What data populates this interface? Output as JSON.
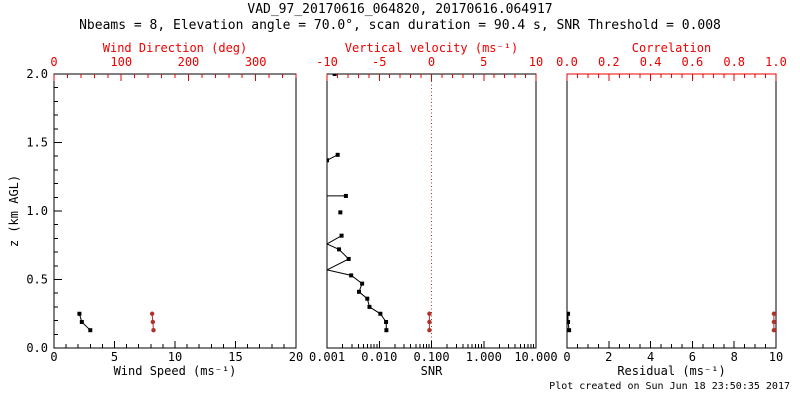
{
  "title": "VAD_97_20170616_064820, 20170616.064917",
  "subtitle": "Nbeams = 8, Elevation angle = 70.0°, scan duration = 90.4 s, SNR Threshold = 0.008",
  "footer": "Plot created on Sun Jun 18 23:50:35 2017",
  "colors": {
    "axis": "#000000",
    "axis_red": "#ee0000",
    "data_black": "#000000",
    "data_red": "#b03128",
    "background": "#ffffff"
  },
  "y_axis": {
    "label": "z (km AGL)",
    "range": [
      0,
      2
    ],
    "tick_values": [
      0,
      0.5,
      1,
      1.5,
      2
    ],
    "tick_labels": [
      "0.0",
      "0.5",
      "1.0",
      "1.5",
      "2.0"
    ],
    "minor_step": 0.1
  },
  "chart_data": [
    {
      "type": "scatter",
      "name": "wind-panel",
      "top_axis": {
        "label": "Wind Direction (deg)",
        "scale": "linear",
        "range": [
          0,
          360
        ],
        "tick_values": [
          0,
          100,
          200,
          300
        ],
        "tick_labels": [
          "0",
          "100",
          "200",
          "300"
        ],
        "minor_step": 20
      },
      "bottom_axis": {
        "label": "Wind Speed (ms⁻¹)",
        "scale": "linear",
        "range": [
          0,
          20
        ],
        "tick_values": [
          0,
          5,
          10,
          15,
          20
        ],
        "tick_labels": [
          "0",
          "5",
          "10",
          "15",
          "20"
        ],
        "minor_step": 1
      },
      "series": [
        {
          "name": "wind-speed",
          "axis": "bottom",
          "color": "data_black",
          "marker": "square",
          "points": [
            {
              "z": 0.25,
              "v": 2.1
            },
            {
              "z": 0.19,
              "v": 2.3
            },
            {
              "z": 0.13,
              "v": 3.0
            }
          ]
        },
        {
          "name": "wind-direction",
          "axis": "top",
          "color": "data_red",
          "marker": "circle",
          "points": [
            {
              "z": 0.25,
              "v": 146
            },
            {
              "z": 0.19,
              "v": 147
            },
            {
              "z": 0.13,
              "v": 148
            }
          ]
        }
      ]
    },
    {
      "type": "scatter",
      "name": "snr-panel",
      "top_axis": {
        "label": "Vertical velocity (ms⁻¹)",
        "scale": "linear",
        "range": [
          -10,
          10
        ],
        "tick_values": [
          -10,
          -5,
          0,
          5,
          10
        ],
        "tick_labels": [
          "-10",
          "-5",
          "0",
          "5",
          "10"
        ],
        "minor_step": 1
      },
      "bottom_axis": {
        "label": "SNR",
        "scale": "log",
        "range": [
          0.001,
          10
        ],
        "tick_values": [
          0.001,
          0.01,
          0.1,
          1,
          10
        ],
        "tick_labels": [
          "0.001",
          "0.010",
          "0.100",
          "1.000",
          "10.000"
        ]
      },
      "zero_line": {
        "axis": "top",
        "value": 0,
        "style": "dotted"
      },
      "series": [
        {
          "name": "snr-profile",
          "axis": "bottom",
          "color": "data_black",
          "marker": "square",
          "points": [
            {
              "z": 2.0,
              "v": 0.0014,
              "m": 1,
              "gap": 1
            },
            {
              "z": 1.41,
              "v": 0.0016,
              "m": 1
            },
            {
              "z": 1.37,
              "v": 0.001,
              "m": 1
            },
            {
              "z": 1.11,
              "v": 0.001,
              "m": 0
            },
            {
              "z": 1.11,
              "v": 0.0023,
              "m": 1,
              "gap": 1
            },
            {
              "z": 0.99,
              "v": 0.0018,
              "m": 1,
              "gap": 1
            },
            {
              "z": 0.82,
              "v": 0.0019,
              "m": 1
            },
            {
              "z": 0.76,
              "v": 0.001,
              "m": 0
            },
            {
              "z": 0.72,
              "v": 0.0017,
              "m": 1
            },
            {
              "z": 0.65,
              "v": 0.0026,
              "m": 1
            },
            {
              "z": 0.57,
              "v": 0.001,
              "m": 0
            },
            {
              "z": 0.53,
              "v": 0.0029,
              "m": 1
            },
            {
              "z": 0.47,
              "v": 0.0047,
              "m": 1
            },
            {
              "z": 0.41,
              "v": 0.0041,
              "m": 1
            },
            {
              "z": 0.36,
              "v": 0.0059,
              "m": 1
            },
            {
              "z": 0.3,
              "v": 0.0065,
              "m": 1
            },
            {
              "z": 0.25,
              "v": 0.0105,
              "m": 1
            },
            {
              "z": 0.19,
              "v": 0.0135,
              "m": 1
            },
            {
              "z": 0.13,
              "v": 0.0137,
              "m": 1
            }
          ]
        },
        {
          "name": "vertical-velocity",
          "axis": "top",
          "color": "data_red",
          "marker": "circle",
          "points": [
            {
              "z": 0.25,
              "v": -0.2
            },
            {
              "z": 0.19,
              "v": -0.2
            },
            {
              "z": 0.13,
              "v": -0.2
            }
          ]
        }
      ]
    },
    {
      "type": "scatter",
      "name": "residual-panel",
      "top_border_red": true,
      "top_axis": {
        "label": "Correlation",
        "scale": "linear",
        "range": [
          0,
          1
        ],
        "tick_values": [
          0,
          0.2,
          0.4,
          0.6,
          0.8,
          1
        ],
        "tick_labels": [
          "0.0",
          "0.2",
          "0.4",
          "0.6",
          "0.8",
          "1.0"
        ],
        "minor_step": 0.05
      },
      "bottom_axis": {
        "label": "Residual (ms⁻¹)",
        "scale": "linear",
        "range": [
          0,
          10
        ],
        "tick_values": [
          0,
          2,
          4,
          6,
          8,
          10
        ],
        "tick_labels": [
          "0",
          "2",
          "4",
          "6",
          "8",
          "10"
        ],
        "minor_step": 0.5
      },
      "series": [
        {
          "name": "residual",
          "axis": "bottom",
          "color": "data_black",
          "marker": "square",
          "points": [
            {
              "z": 0.25,
              "v": 0.05
            },
            {
              "z": 0.19,
              "v": 0.05
            },
            {
              "z": 0.13,
              "v": 0.1
            }
          ]
        },
        {
          "name": "correlation",
          "axis": "top",
          "color": "data_red",
          "marker": "circle",
          "points": [
            {
              "z": 0.25,
              "v": 0.99
            },
            {
              "z": 0.19,
              "v": 0.99
            },
            {
              "z": 0.13,
              "v": 0.99
            }
          ]
        }
      ]
    }
  ]
}
